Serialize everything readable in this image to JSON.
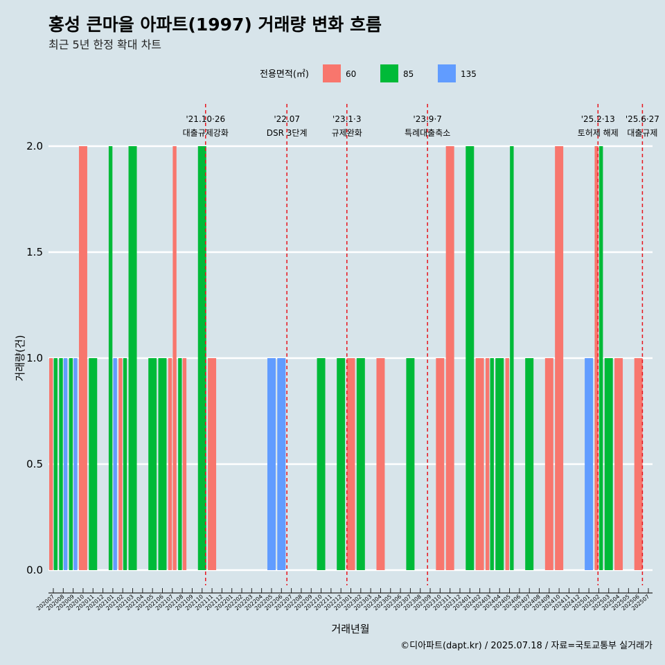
{
  "chart_data": {
    "type": "bar",
    "title": "홍성 큰마을 아파트(1997) 거래량 변화 흐름",
    "subtitle": "최근 5년 한정 확대 차트",
    "xlabel": "거래년월",
    "ylabel": "거래량(건)",
    "caption": "©디아파트(dapt.kr) / 2025.07.18 / 자료=국토교통부 실거래가",
    "legend_title": "전용면적(㎡)",
    "legend_position": "top",
    "ylim": [
      0,
      2.2
    ],
    "yticks": [
      0.0,
      0.5,
      1.0,
      1.5,
      2.0
    ],
    "ytick_labels": [
      "0.0",
      "0.5",
      "1.0",
      "1.5",
      "2.0"
    ],
    "series": [
      {
        "name": "60",
        "color": "#f8766d"
      },
      {
        "name": "85",
        "color": "#00ba38"
      },
      {
        "name": "135",
        "color": "#619cff"
      }
    ],
    "categories": [
      "202007",
      "202008",
      "202009",
      "202010",
      "202011",
      "202012",
      "202101",
      "202102",
      "202103",
      "202104",
      "202105",
      "202106",
      "202107",
      "202108",
      "202109",
      "202110",
      "202111",
      "202112",
      "202201",
      "202202",
      "202203",
      "202204",
      "202205",
      "202206",
      "202207",
      "202208",
      "202209",
      "202210",
      "202211",
      "202212",
      "202301",
      "202302",
      "202303",
      "202304",
      "202305",
      "202306",
      "202307",
      "202308",
      "202309",
      "202310",
      "202311",
      "202312",
      "202401",
      "202402",
      "202403",
      "202404",
      "202405",
      "202406",
      "202407",
      "202408",
      "202409",
      "202410",
      "202411",
      "202412",
      "202501",
      "202502",
      "202503",
      "202504",
      "202505",
      "202506",
      "202507"
    ],
    "bars": [
      {
        "month": "202007",
        "values": [
          {
            "series": "60",
            "value": 1
          },
          {
            "series": "85",
            "value": 1
          }
        ]
      },
      {
        "month": "202008",
        "values": [
          {
            "series": "85",
            "value": 1
          },
          {
            "series": "135",
            "value": 1
          }
        ]
      },
      {
        "month": "202009",
        "values": [
          {
            "series": "85",
            "value": 1
          },
          {
            "series": "135",
            "value": 1
          }
        ]
      },
      {
        "month": "202010",
        "values": [
          {
            "series": "60",
            "value": 2
          }
        ]
      },
      {
        "month": "202011",
        "values": [
          {
            "series": "85",
            "value": 1
          }
        ]
      },
      {
        "month": "202101",
        "values": [
          {
            "series": "85",
            "value": 2
          },
          {
            "series": "135",
            "value": 1
          }
        ]
      },
      {
        "month": "202102",
        "values": [
          {
            "series": "60",
            "value": 1
          },
          {
            "series": "85",
            "value": 1
          }
        ]
      },
      {
        "month": "202103",
        "values": [
          {
            "series": "85",
            "value": 2
          }
        ]
      },
      {
        "month": "202105",
        "values": [
          {
            "series": "85",
            "value": 1
          }
        ]
      },
      {
        "month": "202106",
        "values": [
          {
            "series": "85",
            "value": 1
          }
        ]
      },
      {
        "month": "202107",
        "values": [
          {
            "series": "60",
            "value": 1
          },
          {
            "series": "60",
            "value": 2
          }
        ]
      },
      {
        "month": "202108",
        "values": [
          {
            "series": "85",
            "value": 1
          },
          {
            "series": "60",
            "value": 1
          }
        ]
      },
      {
        "month": "202110",
        "values": [
          {
            "series": "85",
            "value": 2
          }
        ]
      },
      {
        "month": "202111",
        "values": [
          {
            "series": "60",
            "value": 1
          }
        ]
      },
      {
        "month": "202205",
        "values": [
          {
            "series": "135",
            "value": 1
          }
        ]
      },
      {
        "month": "202206",
        "values": [
          {
            "series": "135",
            "value": 1
          }
        ]
      },
      {
        "month": "202210",
        "values": [
          {
            "series": "85",
            "value": 1
          }
        ]
      },
      {
        "month": "202212",
        "values": [
          {
            "series": "85",
            "value": 1
          }
        ]
      },
      {
        "month": "202301",
        "values": [
          {
            "series": "60",
            "value": 1
          }
        ]
      },
      {
        "month": "202302",
        "values": [
          {
            "series": "85",
            "value": 1
          }
        ]
      },
      {
        "month": "202304",
        "values": [
          {
            "series": "60",
            "value": 1
          }
        ]
      },
      {
        "month": "202307",
        "values": [
          {
            "series": "85",
            "value": 1
          }
        ]
      },
      {
        "month": "202310",
        "values": [
          {
            "series": "60",
            "value": 1
          }
        ]
      },
      {
        "month": "202311",
        "values": [
          {
            "series": "60",
            "value": 2
          }
        ]
      },
      {
        "month": "202401",
        "values": [
          {
            "series": "85",
            "value": 2
          }
        ]
      },
      {
        "month": "202402",
        "values": [
          {
            "series": "60",
            "value": 1
          }
        ]
      },
      {
        "month": "202403",
        "values": [
          {
            "series": "60",
            "value": 1
          },
          {
            "series": "85",
            "value": 1
          }
        ]
      },
      {
        "month": "202404",
        "values": [
          {
            "series": "85",
            "value": 1
          }
        ]
      },
      {
        "month": "202405",
        "values": [
          {
            "series": "60",
            "value": 1
          },
          {
            "series": "85",
            "value": 2
          }
        ]
      },
      {
        "month": "202407",
        "values": [
          {
            "series": "85",
            "value": 1
          }
        ]
      },
      {
        "month": "202409",
        "values": [
          {
            "series": "60",
            "value": 1
          }
        ]
      },
      {
        "month": "202410",
        "values": [
          {
            "series": "60",
            "value": 2
          }
        ]
      },
      {
        "month": "202501",
        "values": [
          {
            "series": "135",
            "value": 1
          }
        ]
      },
      {
        "month": "202502",
        "values": [
          {
            "series": "60",
            "value": 2
          },
          {
            "series": "85",
            "value": 2
          }
        ]
      },
      {
        "month": "202503",
        "values": [
          {
            "series": "85",
            "value": 1
          }
        ]
      },
      {
        "month": "202504",
        "values": [
          {
            "series": "60",
            "value": 1
          }
        ]
      },
      {
        "month": "202506",
        "values": [
          {
            "series": "60",
            "value": 1
          }
        ]
      }
    ],
    "events": [
      {
        "month": "202110",
        "day_fraction": 0.85,
        "date_label": "'21.10·26",
        "label": "대출규제강화"
      },
      {
        "month": "202207",
        "day_fraction": 0.05,
        "date_label": "'22.07",
        "label": "DSR 3단계"
      },
      {
        "month": "202301",
        "day_fraction": 0.1,
        "date_label": "'23.1·3",
        "label": "규제완화"
      },
      {
        "month": "202309",
        "day_fraction": 0.23,
        "date_label": "'23.9·7",
        "label": "특례대출축소"
      },
      {
        "month": "202502",
        "day_fraction": 0.42,
        "date_label": "'25.2·13",
        "label": "토허제 해제"
      },
      {
        "month": "202506",
        "day_fraction": 0.9,
        "date_label": "'25.6·27",
        "label": "대출규제"
      }
    ],
    "grid": true
  }
}
